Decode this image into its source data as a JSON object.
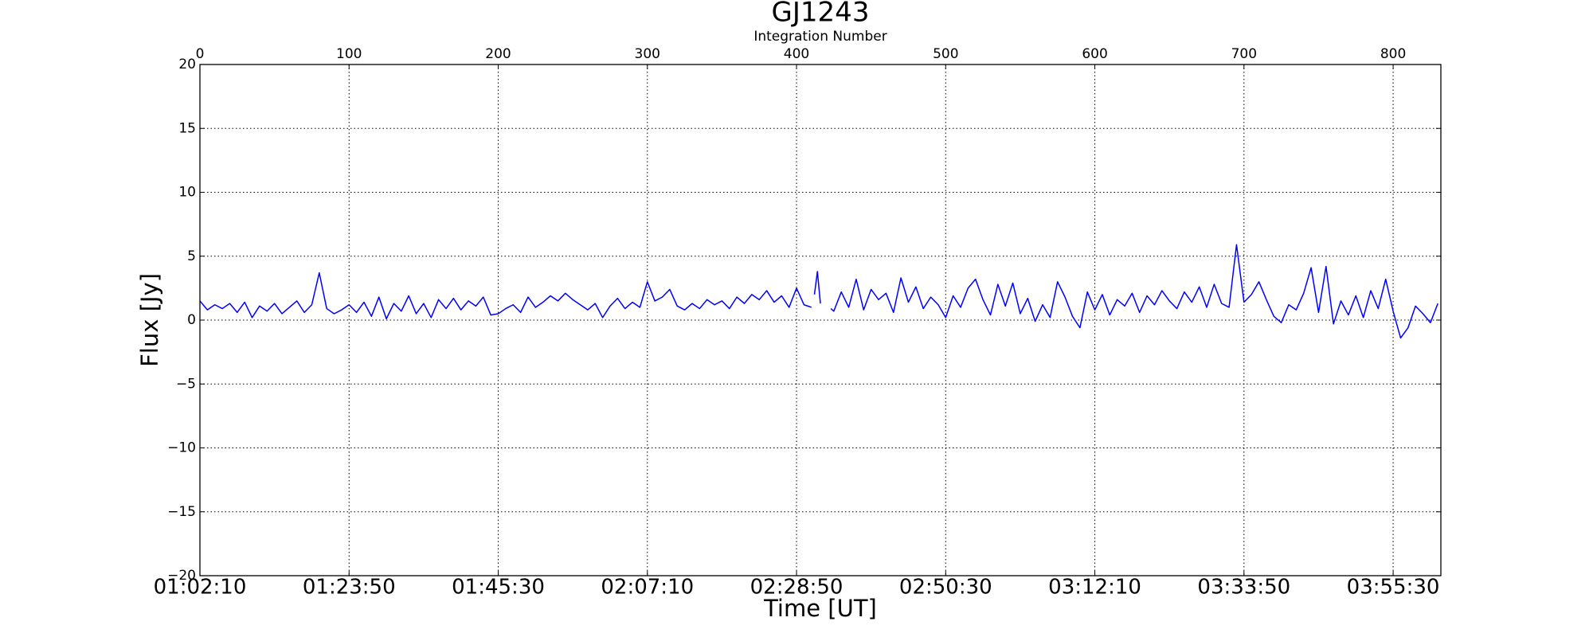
{
  "chart_data": {
    "type": "line",
    "title": "GJ1243",
    "x2label": "Integration Number",
    "xlabel": "Time [UT]",
    "ylabel": "Flux [Jy]",
    "color": "#0000ff",
    "grid": true,
    "xlim": [
      0,
      832
    ],
    "ylim": [
      -20,
      20
    ],
    "xticks": [
      {
        "value": 0,
        "label": "01:02:10"
      },
      {
        "value": 100,
        "label": "01:23:50"
      },
      {
        "value": 200,
        "label": "01:45:30"
      },
      {
        "value": 300,
        "label": "02:07:10"
      },
      {
        "value": 400,
        "label": "02:28:50"
      },
      {
        "value": 500,
        "label": "02:50:30"
      },
      {
        "value": 600,
        "label": "03:12:10"
      },
      {
        "value": 700,
        "label": "03:33:50"
      },
      {
        "value": 800,
        "label": "03:55:30"
      }
    ],
    "x2ticks": [
      0,
      100,
      200,
      300,
      400,
      500,
      600,
      700,
      800
    ],
    "yticks": [
      {
        "value": -20,
        "label": "−20"
      },
      {
        "value": -15,
        "label": "−15"
      },
      {
        "value": -10,
        "label": "−10"
      },
      {
        "value": -5,
        "label": "−5"
      },
      0,
      5,
      10,
      15,
      20
    ],
    "x": [
      0,
      5,
      10,
      15,
      20,
      25,
      30,
      35,
      40,
      45,
      50,
      55,
      60,
      65,
      70,
      75,
      80,
      85,
      90,
      95,
      100,
      105,
      110,
      115,
      120,
      125,
      130,
      135,
      140,
      145,
      150,
      155,
      160,
      165,
      170,
      175,
      180,
      185,
      190,
      195,
      200,
      205,
      210,
      215,
      220,
      225,
      230,
      235,
      240,
      245,
      250,
      255,
      260,
      265,
      270,
      275,
      280,
      285,
      290,
      295,
      300,
      305,
      310,
      315,
      320,
      325,
      330,
      335,
      340,
      345,
      350,
      355,
      360,
      365,
      370,
      375,
      380,
      385,
      390,
      395,
      400,
      405,
      410,
      411,
      412,
      414,
      416,
      418,
      423,
      425,
      430,
      435,
      440,
      445,
      450,
      455,
      460,
      465,
      470,
      475,
      480,
      485,
      490,
      495,
      500,
      505,
      510,
      515,
      520,
      525,
      530,
      535,
      540,
      545,
      550,
      555,
      560,
      565,
      570,
      575,
      580,
      585,
      590,
      595,
      600,
      605,
      610,
      615,
      620,
      625,
      630,
      635,
      640,
      645,
      650,
      655,
      660,
      665,
      670,
      675,
      680,
      685,
      690,
      695,
      700,
      705,
      710,
      715,
      720,
      725,
      730,
      735,
      740,
      745,
      750,
      755,
      760,
      765,
      770,
      775,
      780,
      785,
      790,
      795,
      800,
      805,
      810,
      815,
      820,
      825,
      830
    ],
    "values": [
      1.5,
      0.8,
      1.2,
      0.9,
      1.3,
      0.6,
      1.4,
      0.2,
      1.1,
      0.7,
      1.3,
      0.5,
      1.0,
      1.5,
      0.6,
      1.2,
      3.7,
      0.9,
      0.5,
      0.8,
      1.2,
      0.6,
      1.4,
      0.3,
      1.8,
      0.1,
      1.3,
      0.7,
      1.9,
      0.5,
      1.3,
      0.2,
      1.6,
      0.9,
      1.7,
      0.8,
      1.5,
      1.1,
      1.8,
      0.4,
      0.5,
      0.9,
      1.2,
      0.6,
      1.8,
      1.0,
      1.4,
      1.9,
      1.5,
      2.1,
      1.6,
      1.2,
      0.8,
      1.3,
      0.2,
      1.1,
      1.7,
      0.9,
      1.4,
      1.0,
      3.0,
      1.5,
      1.8,
      2.4,
      1.1,
      0.8,
      1.3,
      0.9,
      1.6,
      1.2,
      1.5,
      0.9,
      1.8,
      1.3,
      2.0,
      1.6,
      2.3,
      1.4,
      1.9,
      1.0,
      2.5,
      1.2,
      1.0,
      null,
      2.0,
      3.8,
      1.3,
      null,
      0.9,
      0.7,
      2.2,
      1.0,
      3.2,
      0.8,
      2.4,
      1.6,
      2.1,
      0.6,
      3.3,
      1.4,
      2.6,
      0.9,
      1.8,
      1.2,
      0.2,
      1.9,
      1.0,
      2.5,
      3.2,
      1.6,
      0.4,
      2.8,
      1.1,
      2.9,
      0.5,
      1.7,
      -0.1,
      1.2,
      0.2,
      3.0,
      1.8,
      0.3,
      -0.6,
      2.2,
      0.8,
      2.0,
      0.4,
      1.6,
      1.1,
      2.1,
      0.6,
      1.9,
      1.2,
      2.3,
      1.5,
      0.9,
      2.2,
      1.4,
      2.6,
      1.0,
      2.8,
      1.3,
      1.0,
      5.9,
      1.4,
      2.0,
      3.0,
      1.6,
      0.3,
      -0.2,
      1.2,
      0.8,
      2.1,
      4.1,
      0.6,
      4.2,
      -0.3,
      1.5,
      0.4,
      1.9,
      0.2,
      2.3,
      0.9,
      3.2,
      0.7,
      -1.4,
      -0.6,
      1.1,
      0.5,
      -0.2,
      1.3
    ]
  }
}
